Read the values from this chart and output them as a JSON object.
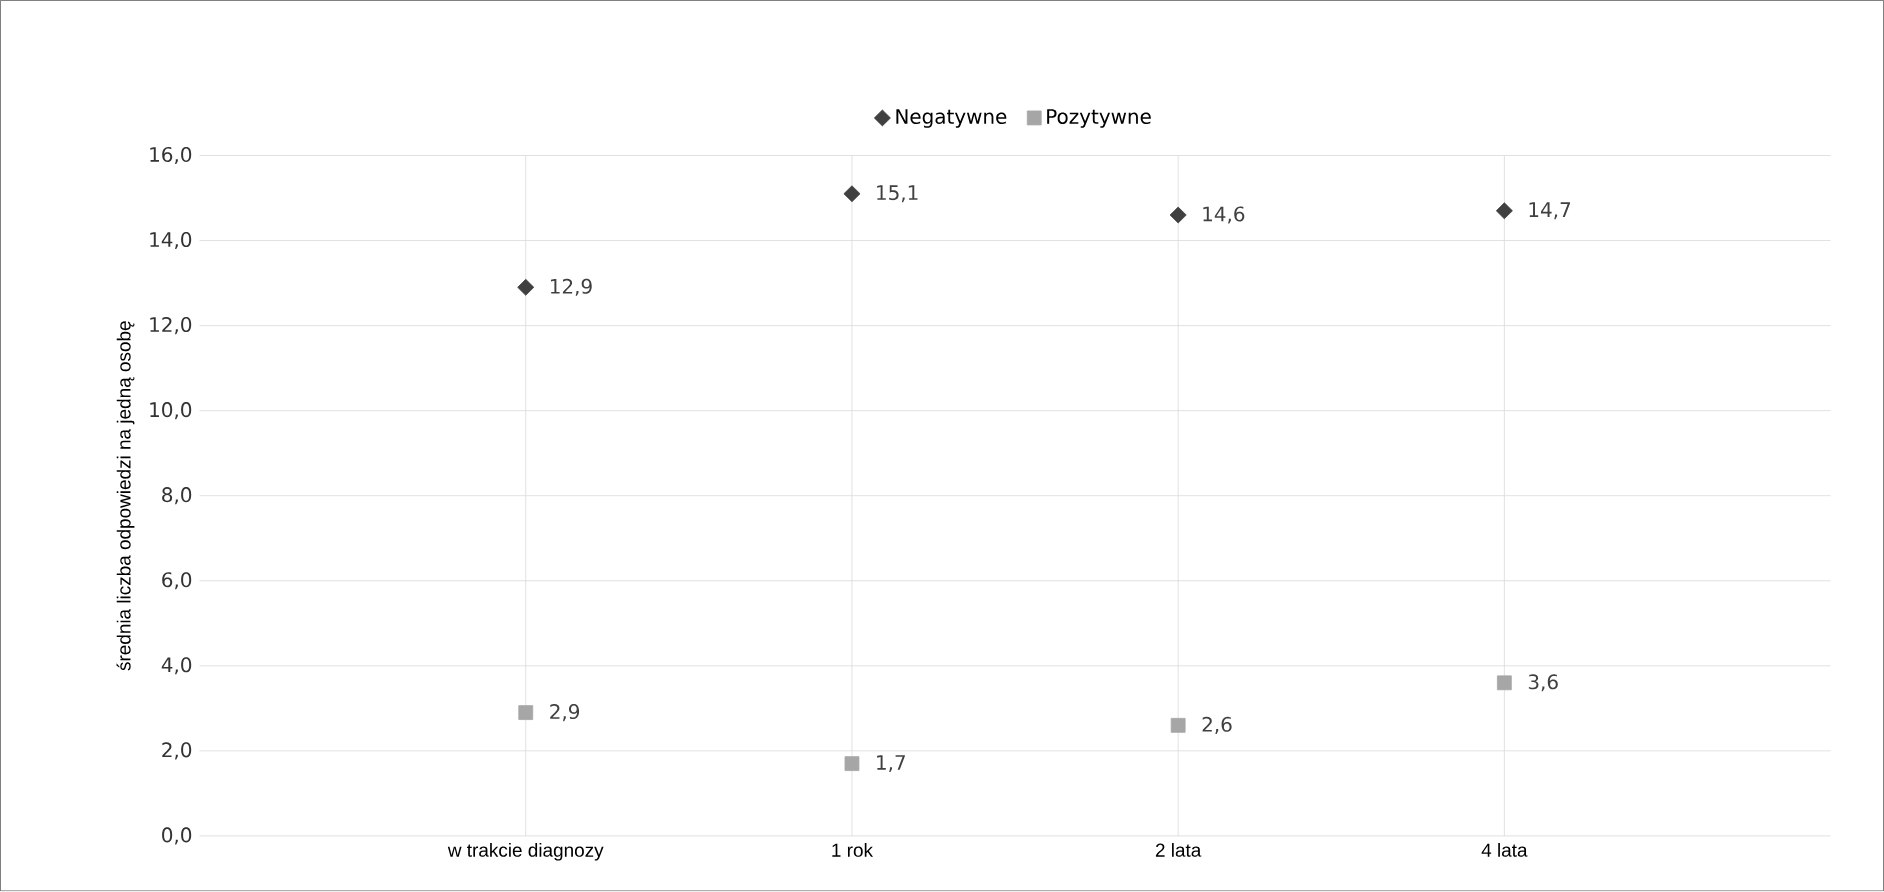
{
  "chart_data": {
    "type": "scatter",
    "ylabel": "średnia liczba odpowiedzi na jedną osobę",
    "categories": [
      "w trakcie diagnozy",
      "1 rok",
      "2 lata",
      "4 lata"
    ],
    "series": [
      {
        "name": "Negatywne",
        "color": "#404040",
        "marker": "diamond",
        "values": [
          12.9,
          15.1,
          14.6,
          14.7
        ],
        "value_labels": [
          "12,9",
          "15,1",
          "14,6",
          "14,7"
        ]
      },
      {
        "name": "Pozytywne",
        "color": "#a6a6a6",
        "marker": "square",
        "values": [
          2.9,
          1.7,
          2.6,
          3.6
        ],
        "value_labels": [
          "2,9",
          "1,7",
          "2,6",
          "3,6"
        ]
      }
    ],
    "ylim": [
      0,
      16
    ],
    "yticks": [
      {
        "value": 0,
        "label": "0,0"
      },
      {
        "value": 2,
        "label": "2,0"
      },
      {
        "value": 4,
        "label": "4,0"
      },
      {
        "value": 6,
        "label": "6,0"
      },
      {
        "value": 8,
        "label": "8,0"
      },
      {
        "value": 10,
        "label": "10,0"
      },
      {
        "value": 12,
        "label": "12,0"
      },
      {
        "value": 14,
        "label": "14,0"
      },
      {
        "value": 16,
        "label": "16,0"
      }
    ],
    "grid": true,
    "legend": "top"
  }
}
